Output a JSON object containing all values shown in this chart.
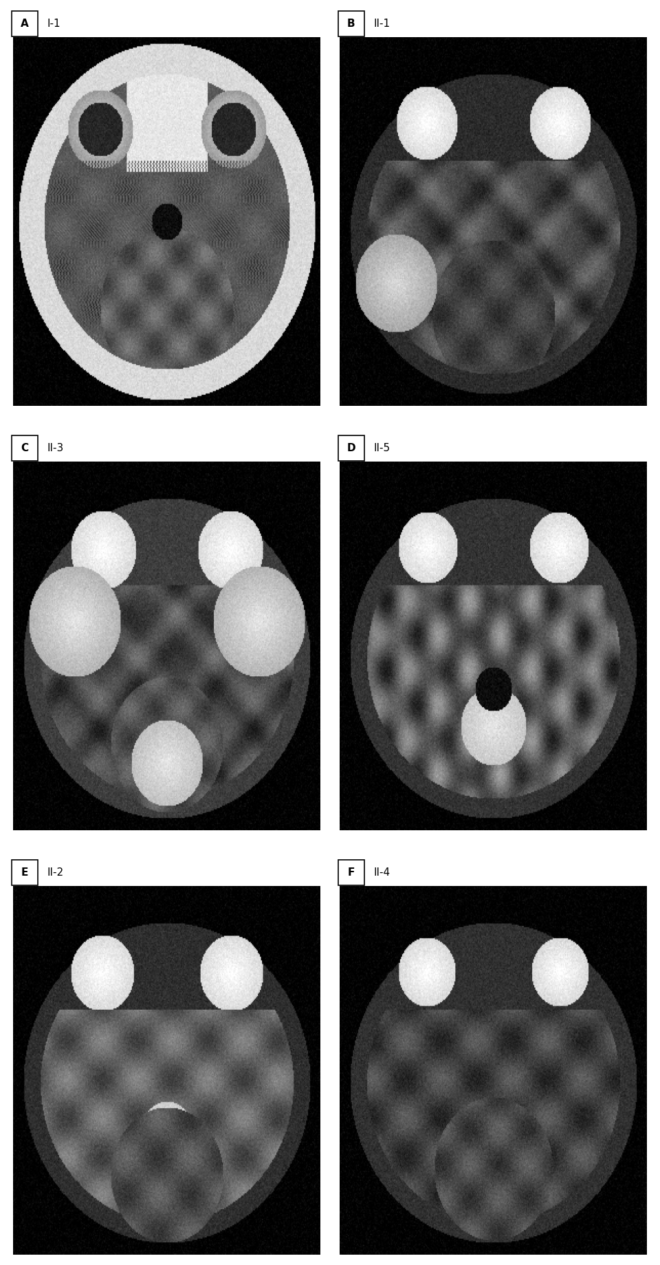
{
  "panels": [
    {
      "label": "A",
      "title": "I-1",
      "row": 0,
      "col": 0,
      "style": "ct"
    },
    {
      "label": "B",
      "title": "II-1",
      "row": 0,
      "col": 1,
      "style": "mri",
      "variant": 0
    },
    {
      "label": "C",
      "title": "II-3",
      "row": 1,
      "col": 0,
      "style": "mri",
      "variant": 1
    },
    {
      "label": "D",
      "title": "II-5",
      "row": 1,
      "col": 1,
      "style": "mri",
      "variant": 2
    },
    {
      "label": "E",
      "title": "II-2",
      "row": 2,
      "col": 0,
      "style": "mri",
      "variant": 3
    },
    {
      "label": "F",
      "title": "II-4",
      "row": 2,
      "col": 1,
      "style": "mri",
      "variant": 4
    }
  ],
  "background_color": "#ffffff",
  "label_fontsize": 11,
  "title_fontsize": 11,
  "label_text_color": "#000000"
}
